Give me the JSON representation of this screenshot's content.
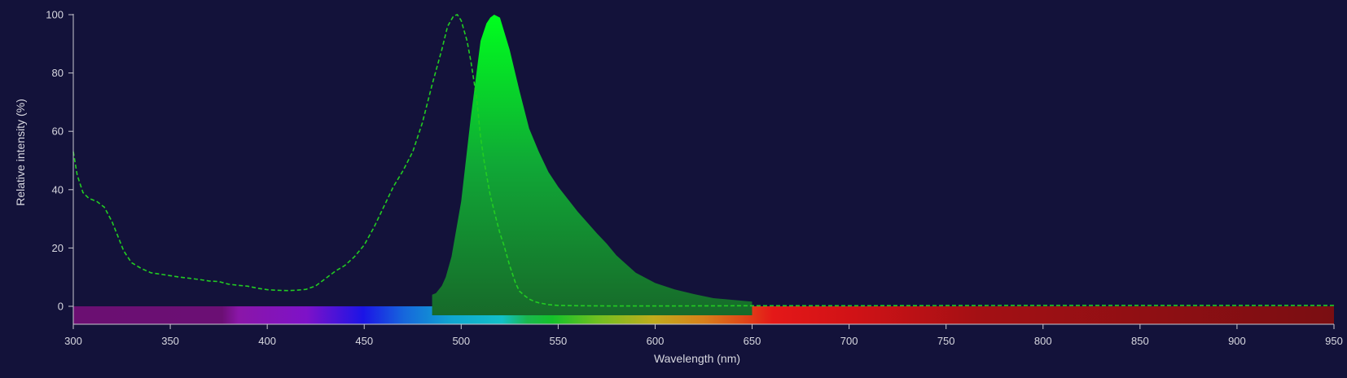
{
  "chart_data": {
    "type": "area",
    "xlabel": "Wavelength (nm)",
    "ylabel": "Relative intensity (%)",
    "xlim": [
      300,
      950
    ],
    "ylim": [
      0,
      100
    ],
    "xticks": [
      300,
      350,
      400,
      450,
      500,
      550,
      600,
      650,
      700,
      750,
      800,
      850,
      900,
      950
    ],
    "yticks": [
      0,
      20,
      40,
      60,
      80,
      100
    ],
    "grid": false,
    "background_color": "#13123a",
    "axis_color": "#c8c8d0",
    "spectrum_bar": true,
    "series": [
      {
        "style": "dashed-line",
        "color": "#22cc22",
        "x": [
          300,
          302,
          305,
          308,
          312,
          316,
          320,
          323,
          326,
          330,
          335,
          340,
          345,
          350,
          355,
          360,
          365,
          370,
          375,
          380,
          385,
          390,
          395,
          400,
          405,
          410,
          415,
          420,
          425,
          430,
          435,
          440,
          445,
          450,
          455,
          460,
          465,
          470,
          475,
          480,
          485,
          490,
          493,
          496,
          498,
          500,
          503,
          505,
          508,
          510,
          512,
          515,
          518,
          520,
          522,
          525,
          528,
          530,
          533,
          535,
          538,
          540,
          545,
          550,
          560,
          580,
          600,
          650,
          700,
          800,
          900,
          950
        ],
        "y": [
          53,
          45,
          39,
          37,
          36,
          34,
          29,
          24,
          19,
          15,
          13,
          11.5,
          11,
          10.5,
          10,
          9.6,
          9.2,
          8.7,
          8.5,
          7.6,
          7.2,
          6.9,
          6.2,
          5.7,
          5.5,
          5.4,
          5.5,
          5.8,
          7,
          9.5,
          12,
          14,
          17,
          21,
          27,
          34,
          41,
          46.5,
          53,
          63,
          76,
          88,
          96,
          99.5,
          100,
          98,
          91,
          84,
          71,
          58,
          49,
          38,
          30,
          25,
          21,
          14,
          8,
          5.2,
          3.5,
          2.5,
          1.6,
          1.2,
          0.6,
          0.3,
          0.2,
          0.1,
          0.1,
          0.2,
          0.2,
          0.3,
          0.3,
          0.3
        ]
      },
      {
        "style": "filled-area",
        "color": "#0a8a2a",
        "x": [
          485,
          487,
          490,
          492,
          495,
          500,
          505,
          510,
          513,
          515,
          517,
          520,
          525,
          530,
          535,
          540,
          545,
          550,
          560,
          570,
          575,
          580,
          590,
          600,
          610,
          620,
          630,
          640,
          650
        ],
        "y": [
          4,
          4.5,
          7,
          10,
          17,
          36,
          65,
          91,
          97,
          99,
          100,
          99,
          88,
          74,
          61,
          53,
          46,
          41,
          32.5,
          25,
          21.5,
          17.5,
          11.5,
          8,
          5.8,
          4.2,
          2.8,
          2.2,
          1.6
        ]
      }
    ]
  }
}
